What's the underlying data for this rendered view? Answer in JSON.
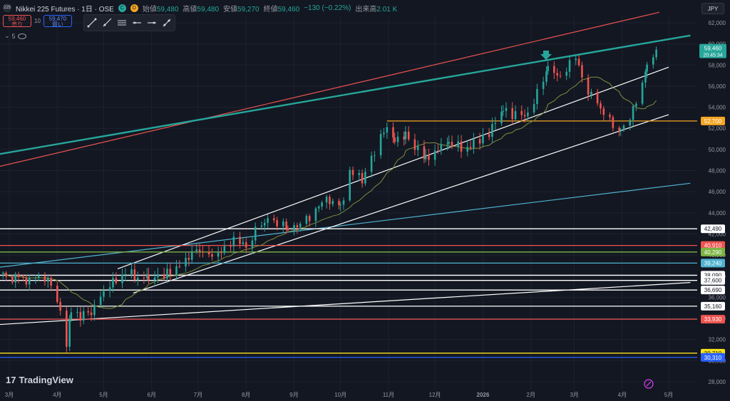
{
  "header": {
    "logo_text": "225",
    "symbol": "Nikkei 225 Futures · 1日 · OSE",
    "dot1": "C",
    "dot2": "D",
    "open_label": "始値",
    "open": "59,480",
    "high_label": "高値",
    "high": "59,480",
    "low_label": "安値",
    "low": "59,270",
    "close_label": "終値",
    "close": "59,460",
    "change": "−130 (−0.22%)",
    "volume_label": "出来高",
    "volume": "2.01 K",
    "currency": "JPY"
  },
  "trade": {
    "sell_price": "59,460",
    "sell_label": "売り",
    "qty": "10",
    "buy_price": "59,470",
    "buy_label": "買い"
  },
  "indicator_count": "5",
  "tools": [
    "trend-line-icon",
    "ray-icon",
    "horizontal-ray-icon",
    "parallel-channel-icon",
    "arrow-marker-icon",
    "brush-icon"
  ],
  "branding": "TradingView",
  "colors": {
    "up": "#26a69a",
    "down": "#ef5350",
    "ma": "#7f8f3d"
  },
  "chart_data": {
    "type": "candlestick",
    "ylim": [
      28000,
      62500
    ],
    "y_ticks": [
      28000,
      30000,
      32000,
      34000,
      36000,
      38000,
      40000,
      42000,
      44000,
      46000,
      48000,
      50000,
      52000,
      54000,
      56000,
      58000,
      60000,
      62000
    ],
    "x_ticks": [
      "3月",
      "4月",
      "5月",
      "6月",
      "7月",
      "8月",
      "9月",
      "10月",
      "11月",
      "12月",
      "2026",
      "2月",
      "3月",
      "4月",
      "5月"
    ],
    "x_tick_dates": [
      "2025-03-01",
      "2025-04-01",
      "2025-05-01",
      "2025-06-01",
      "2025-07-01",
      "2025-08-01",
      "2025-09-01",
      "2025-10-01",
      "2025-11-01",
      "2025-12-01",
      "2026-01-01",
      "2026-02-01",
      "2026-03-01",
      "2026-04-01",
      "2026-05-01"
    ],
    "price_levels": [
      {
        "label": "52,700",
        "value": 52700,
        "color": "#f5a623"
      },
      {
        "label": "42,490",
        "value": 42490,
        "color": "#ffffff"
      },
      {
        "label": "40,910",
        "value": 40910,
        "color": "#ef5350"
      },
      {
        "label": "40,290",
        "value": 40290,
        "color": "#7cb342"
      },
      {
        "label": "39,240",
        "value": 39240,
        "color": "#4fb3cf"
      },
      {
        "label": "38,090",
        "value": 38090,
        "color": "#ffffff"
      },
      {
        "label": "37,600",
        "value": 37600,
        "color": "#ffffff"
      },
      {
        "label": "36,690",
        "value": 36690,
        "color": "#ffffff"
      },
      {
        "label": "35,160",
        "value": 35160,
        "color": "#ffffff"
      },
      {
        "label": "33,930",
        "value": 33930,
        "color": "#ef5350"
      },
      {
        "label": "30,710",
        "value": 30710,
        "color": "#f7e11b"
      },
      {
        "label": "30,310",
        "value": 30310,
        "color": "#2962ff"
      }
    ],
    "last_price": {
      "label": "59,460",
      "value": 59460,
      "timer": "20:45:34"
    },
    "trend_lines": [
      {
        "color": "#ef5350",
        "from": [
          "2025-02-20",
          48300
        ],
        "to": [
          "2026-04-25",
          63000
        ]
      },
      {
        "color": "#26a69a",
        "from": [
          "2025-02-20",
          49500
        ],
        "to": [
          "2026-05-15",
          60800
        ]
      },
      {
        "color": "#4fb3cf",
        "from": [
          "2025-02-20",
          38800
        ],
        "to": [
          "2026-05-15",
          46800
        ]
      },
      {
        "color": "#ffffff",
        "from": [
          "2025-05-10",
          38700
        ],
        "to": [
          "2026-05-01",
          57800
        ]
      },
      {
        "color": "#ffffff",
        "from": [
          "2025-05-20",
          36400
        ],
        "to": [
          "2026-05-01",
          53300
        ]
      },
      {
        "color": "#ffffff",
        "from": [
          "2025-02-20",
          33400
        ],
        "to": [
          "2026-05-15",
          37400
        ]
      }
    ],
    "swing_points": [
      [
        "2025-02-25",
        38200
      ],
      [
        "2025-03-10",
        37600
      ],
      [
        "2025-03-20",
        37900
      ],
      [
        "2025-03-28",
        37200
      ],
      [
        "2025-04-03",
        35000
      ],
      [
        "2025-04-07",
        31500
      ],
      [
        "2025-04-10",
        34500
      ],
      [
        "2025-04-21",
        34300
      ],
      [
        "2025-05-01",
        36400
      ],
      [
        "2025-05-13",
        38200
      ],
      [
        "2025-05-30",
        37900
      ],
      [
        "2025-06-15",
        38300
      ],
      [
        "2025-06-30",
        40500
      ],
      [
        "2025-07-10",
        39600
      ],
      [
        "2025-07-24",
        41500
      ],
      [
        "2025-08-01",
        40700
      ],
      [
        "2025-08-13",
        43300
      ],
      [
        "2025-08-28",
        42600
      ],
      [
        "2025-09-05",
        43000
      ],
      [
        "2025-09-22",
        45300
      ],
      [
        "2025-10-01",
        44500
      ],
      [
        "2025-10-07",
        48000
      ],
      [
        "2025-10-15",
        47000
      ],
      [
        "2025-10-31",
        52400
      ],
      [
        "2025-11-05",
        50800
      ],
      [
        "2025-11-12",
        51500
      ],
      [
        "2025-11-25",
        49200
      ],
      [
        "2025-12-10",
        50600
      ],
      [
        "2025-12-20",
        49900
      ],
      [
        "2026-01-05",
        51500
      ],
      [
        "2026-01-14",
        53800
      ],
      [
        "2026-01-28",
        53000
      ],
      [
        "2026-02-12",
        57600
      ],
      [
        "2026-02-20",
        56800
      ],
      [
        "2026-03-02",
        58700
      ],
      [
        "2026-03-10",
        55500
      ],
      [
        "2026-03-20",
        53500
      ],
      [
        "2026-03-31",
        51800
      ],
      [
        "2026-04-08",
        53800
      ],
      [
        "2026-04-17",
        57800
      ],
      [
        "2026-04-23",
        59460
      ]
    ]
  }
}
